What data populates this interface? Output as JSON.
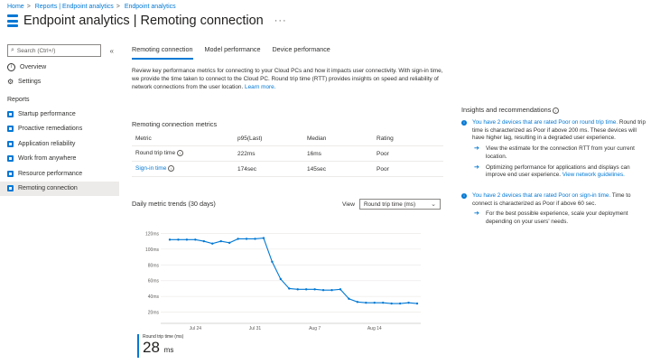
{
  "breadcrumb": [
    "Home",
    "Reports | Endpoint analytics",
    "Endpoint analytics"
  ],
  "breadcrumb_sep": ">",
  "header": {
    "title": "Endpoint analytics | Remoting connection",
    "more": "···"
  },
  "sidebar": {
    "search_placeholder": "Search (Ctrl+/)",
    "collapse": "«",
    "top_items": [
      {
        "label": "Overview",
        "icon": "info-icon"
      },
      {
        "label": "Settings",
        "icon": "gear-icon"
      }
    ],
    "section_label": "Reports",
    "report_items": [
      {
        "label": "Startup performance"
      },
      {
        "label": "Proactive remediations"
      },
      {
        "label": "Application reliability"
      },
      {
        "label": "Work from anywhere"
      },
      {
        "label": "Resource performance"
      },
      {
        "label": "Remoting connection",
        "selected": true
      }
    ]
  },
  "tabs": [
    {
      "label": "Remoting connection",
      "active": true
    },
    {
      "label": "Model performance"
    },
    {
      "label": "Device performance"
    }
  ],
  "description": {
    "text": "Review key performance metrics for connecting to your Cloud PCs and how it impacts user connectivity. With sign-in time, we provide the time taken to connect to the Cloud PC. Round trip time (RTT) provides insights on speed and reliability of network connections from the user location. ",
    "link": "Learn more."
  },
  "metrics": {
    "title": "Remoting connection metrics",
    "headers": [
      "Metric",
      "p95(Last)",
      "Median",
      "Rating"
    ],
    "rows": [
      {
        "metric": "Round trip time",
        "p95": "222ms",
        "median": "16ms",
        "rating": "Poor",
        "is_link": false
      },
      {
        "metric": "Sign-in time",
        "p95": "174sec",
        "median": "145sec",
        "rating": "Poor",
        "is_link": true
      }
    ]
  },
  "trends": {
    "title": "Daily metric trends (30 days)",
    "view_label": "View",
    "view_selected": "Round trip time (ms)"
  },
  "chart_data": {
    "type": "line",
    "y_ticks": [
      "20ms",
      "40ms",
      "60ms",
      "80ms",
      "100ms",
      "120ms"
    ],
    "x_ticks": [
      "Jul 24",
      "Jul 31",
      "Aug 7",
      "Aug 14"
    ],
    "ylim": [
      15,
      125
    ],
    "series": [
      {
        "color": "#0078d4",
        "values": [
          112,
          112,
          112,
          112,
          110,
          107,
          110,
          108,
          113,
          113,
          113,
          114,
          84,
          62,
          50,
          49,
          49,
          49,
          48,
          48,
          49,
          37,
          33,
          32,
          32,
          32,
          31,
          31,
          32,
          31
        ]
      }
    ],
    "grid": true
  },
  "kpi": {
    "label": "Round trip time (ms)",
    "value": "28",
    "unit": "ms"
  },
  "insights": {
    "title": "Insights and recommendations",
    "blocks": [
      {
        "highlight": "You have 2 devices that are rated Poor on round trip time.",
        "text": " Round trip time is characterized as Poor if above 200 ms. These devices will have higher lag, resulting in a degraded user experience.",
        "subs": [
          {
            "text": "View the estimate for the connection RTT from your current location.",
            "link": ""
          },
          {
            "text": "Optimizing performance for applications and displays can improve end user experience. ",
            "link": "View network guidelines."
          }
        ]
      },
      {
        "highlight": "You have 2 devices that are rated Poor on sign-in time.",
        "text": " Time to connect is characterized as Poor if above 60 sec.",
        "subs": [
          {
            "text": "For the best possible experience, scale your deployment depending on your users' needs.",
            "link": ""
          }
        ]
      }
    ]
  }
}
